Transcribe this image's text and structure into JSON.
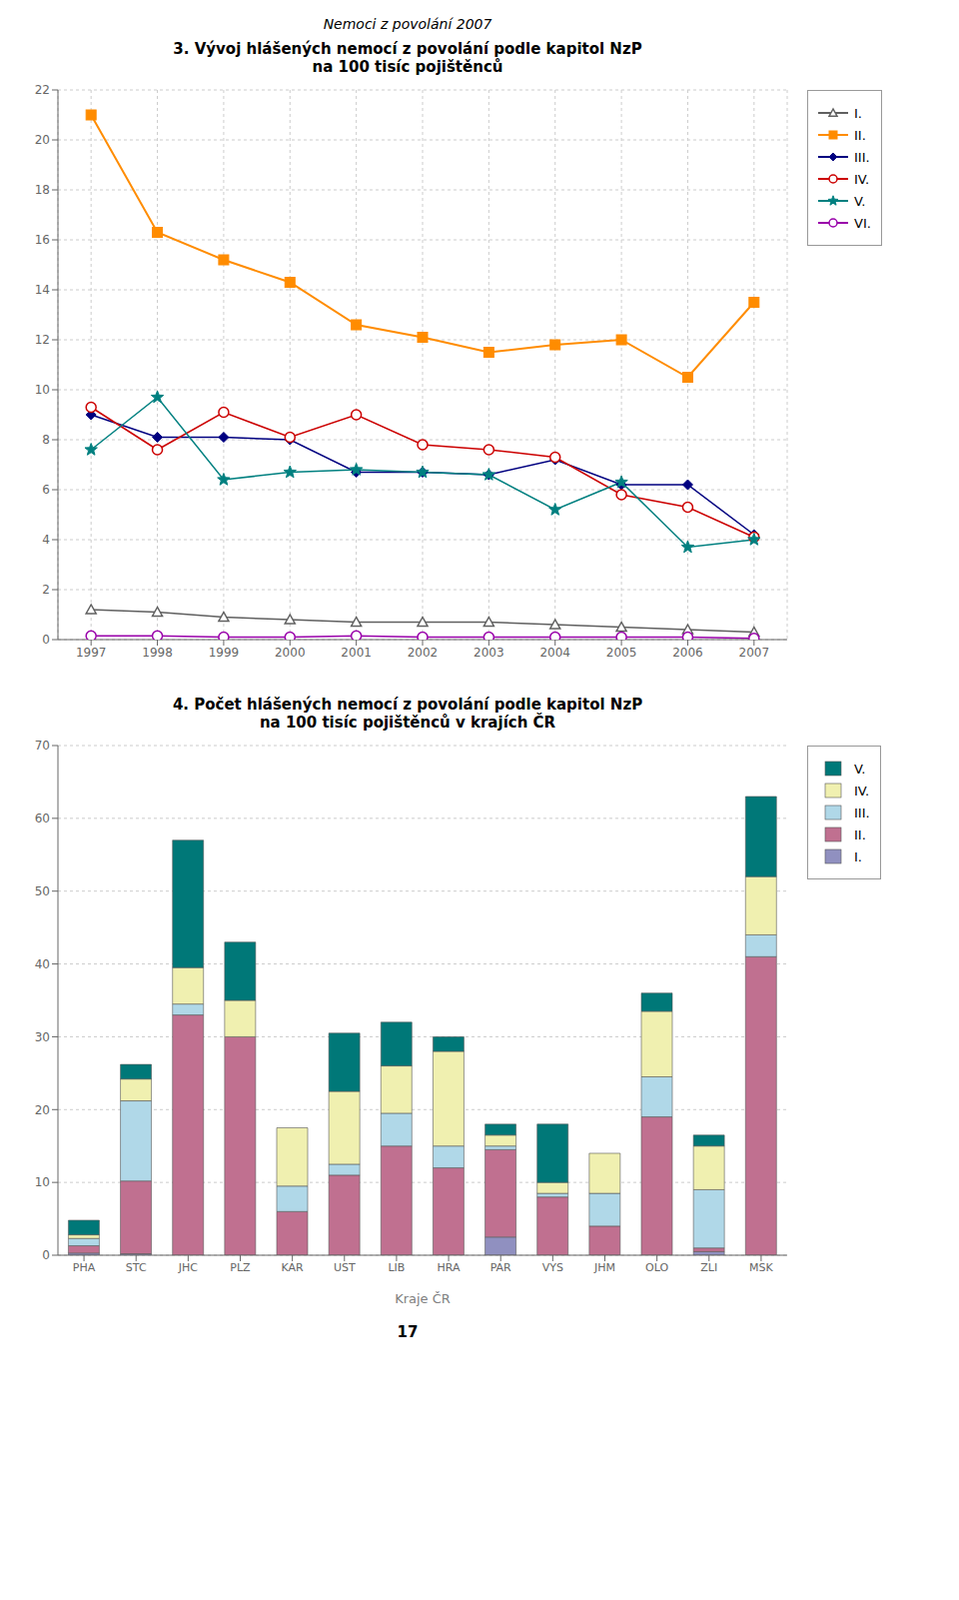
{
  "chart_data": [
    {
      "type": "line",
      "title": "3. Vývoj hlášených nemocí z povolání podle kapitol NzP\nna 100 tisíc pojištěnců",
      "annotations": [
        "Nemoci z povolání 2007"
      ],
      "x": [
        1997,
        1998,
        1999,
        2000,
        2001,
        2002,
        2003,
        2004,
        2005,
        2006,
        2007
      ],
      "xlim": [
        1996.5,
        2007.5
      ],
      "xticks": [
        1997,
        1998,
        1999,
        2000,
        2001,
        2002,
        2003,
        2004,
        2005,
        2006,
        2007
      ],
      "ylim": [
        0,
        22
      ],
      "yticks": [
        0,
        2,
        4,
        6,
        8,
        10,
        12,
        14,
        16,
        18,
        20,
        22
      ],
      "grid": true,
      "legend": "right",
      "series": [
        {
          "name": "I.",
          "color": "#606060",
          "marker": "triangle",
          "values": [
            1.2,
            1.1,
            0.9,
            0.8,
            0.7,
            0.7,
            0.7,
            0.6,
            0.5,
            0.4,
            0.3
          ]
        },
        {
          "name": "II.",
          "color": "#FF8C00",
          "marker": "square",
          "values": [
            21.0,
            16.3,
            15.2,
            14.3,
            12.6,
            12.1,
            11.5,
            11.8,
            12.0,
            10.5,
            13.5
          ]
        },
        {
          "name": "III.",
          "color": "#000080",
          "marker": "diamond",
          "values": [
            9.0,
            8.1,
            8.1,
            8.0,
            6.7,
            6.7,
            6.6,
            7.2,
            6.2,
            6.2,
            4.2
          ]
        },
        {
          "name": "IV.",
          "color": "#CC0000",
          "marker": "circle",
          "values": [
            9.3,
            7.6,
            9.1,
            8.1,
            9.0,
            7.8,
            7.6,
            7.3,
            5.8,
            5.3,
            4.1
          ]
        },
        {
          "name": "V.",
          "color": "#008080",
          "marker": "star",
          "values": [
            7.6,
            9.7,
            6.4,
            6.7,
            6.8,
            6.7,
            6.6,
            5.2,
            6.3,
            3.7,
            4.0
          ]
        },
        {
          "name": "VI.",
          "color": "#9900AA",
          "marker": "circle",
          "values": [
            0.15,
            0.15,
            0.1,
            0.1,
            0.15,
            0.1,
            0.1,
            0.1,
            0.1,
            0.1,
            0.05
          ]
        }
      ]
    },
    {
      "type": "bar",
      "stacked": true,
      "title": "4. Počet hlášených nemocí z povolání podle kapitol NzP\nna 100 tisíc pojištěnců v krajích ČR",
      "annotations": [
        "17"
      ],
      "xlabel": "Kraje ČR",
      "categories": [
        "PHA",
        "STC",
        "JHC",
        "PLZ",
        "KAR",
        "UST",
        "LIB",
        "HRA",
        "PAR",
        "VYS",
        "JHM",
        "OLO",
        "ZLI",
        "MSK"
      ],
      "ylim": [
        0,
        70
      ],
      "yticks": [
        0,
        10,
        20,
        30,
        40,
        50,
        60,
        70
      ],
      "grid": true,
      "legend": "right",
      "series": [
        {
          "name": "I.",
          "color": "#9090C0",
          "values": [
            0.3,
            0.2,
            0.0,
            0.0,
            0.0,
            0.0,
            0.0,
            0.0,
            2.5,
            0.0,
            0.0,
            0.0,
            0.5,
            0.0
          ]
        },
        {
          "name": "II.",
          "color": "#C07090",
          "values": [
            1.0,
            10.0,
            33.0,
            30.0,
            6.0,
            11.0,
            15.0,
            12.0,
            12.0,
            8.0,
            4.0,
            19.0,
            0.5,
            41.0
          ]
        },
        {
          "name": "III.",
          "color": "#B0D8E8",
          "values": [
            1.0,
            11.0,
            1.5,
            0.0,
            3.5,
            1.5,
            4.5,
            3.0,
            0.5,
            0.5,
            4.5,
            5.5,
            8.0,
            3.0
          ]
        },
        {
          "name": "IV.",
          "color": "#F0F0B0",
          "values": [
            0.5,
            3.0,
            5.0,
            5.0,
            8.0,
            10.0,
            6.5,
            13.0,
            1.5,
            1.5,
            5.5,
            9.0,
            6.0,
            8.0
          ]
        },
        {
          "name": "V.",
          "color": "#007878",
          "values": [
            2.0,
            2.0,
            17.5,
            8.0,
            0.0,
            8.0,
            6.0,
            2.0,
            1.5,
            8.0,
            0.0,
            2.5,
            1.5,
            11.0
          ]
        }
      ]
    }
  ]
}
